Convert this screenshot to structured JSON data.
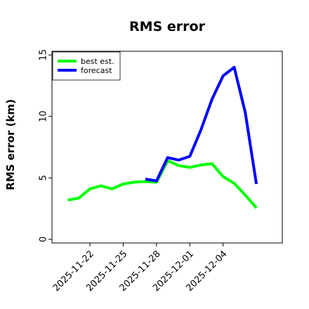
{
  "chart_data": {
    "type": "line",
    "title": "RMS error",
    "xlabel": "",
    "ylabel": "RMS error (km)",
    "x_type": "date",
    "xlim": [
      "2025-11-18T14:00",
      "2025-12-09T08:00"
    ],
    "ylim": [
      -0.3,
      15.3
    ],
    "yticks": [
      0,
      5,
      10,
      15
    ],
    "xticks": [
      "2025-11-22",
      "2025-11-25",
      "2025-11-28",
      "2025-12-01",
      "2025-12-04"
    ],
    "grid": false,
    "legend_position": "top-left",
    "series": [
      {
        "name": "best est.",
        "color": "#00ff00",
        "x": [
          "2025-11-20",
          "2025-11-21",
          "2025-11-22",
          "2025-11-23",
          "2025-11-24",
          "2025-11-25",
          "2025-11-26",
          "2025-11-27",
          "2025-11-28",
          "2025-11-29",
          "2025-11-30",
          "2025-12-01",
          "2025-12-02",
          "2025-12-03",
          "2025-12-04",
          "2025-12-05",
          "2025-12-06",
          "2025-12-07"
        ],
        "y": [
          3.2,
          3.35,
          4.1,
          4.35,
          4.1,
          4.5,
          4.65,
          4.7,
          4.65,
          6.4,
          6.0,
          5.85,
          6.05,
          6.15,
          5.1,
          4.55,
          3.6,
          2.55
        ]
      },
      {
        "name": "forecast",
        "color": "#0000ff",
        "x": [
          "2025-11-27",
          "2025-11-28",
          "2025-11-29",
          "2025-11-30",
          "2025-12-01",
          "2025-12-02",
          "2025-12-03",
          "2025-12-04",
          "2025-12-05",
          "2025-12-06",
          "2025-12-07"
        ],
        "y": [
          4.9,
          4.75,
          6.65,
          6.45,
          6.75,
          8.9,
          11.4,
          13.3,
          14.0,
          10.3,
          4.5
        ]
      }
    ]
  }
}
